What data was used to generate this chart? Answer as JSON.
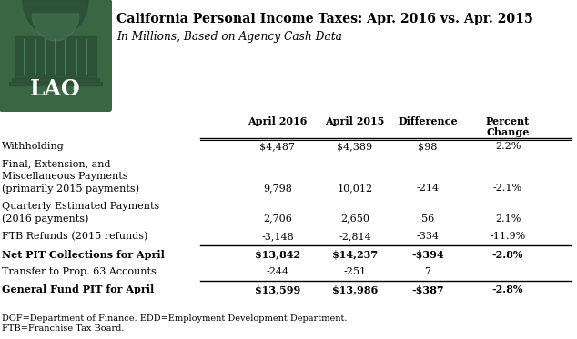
{
  "title": "California Personal Income Taxes: Apr. 2016 vs. Apr. 2015",
  "subtitle": "In Millions, Based on Agency Cash Data",
  "col_headers": [
    "April 2016",
    "April 2015",
    "Difference",
    "Percent\nChange"
  ],
  "rows": [
    {
      "label_lines": [
        "Withholding"
      ],
      "values": [
        "$4,487",
        "$4,389",
        "$98",
        "2.2%"
      ],
      "bold": false,
      "border_above": true,
      "border_below": false
    },
    {
      "label_lines": [
        "Final, Extension, and",
        "Miscellaneous Payments",
        "(primarily 2015 payments)"
      ],
      "values": [
        "9,798",
        "10,012",
        "-214",
        "-2.1%"
      ],
      "bold": false,
      "border_above": false,
      "border_below": false
    },
    {
      "label_lines": [
        "Quarterly Estimated Payments",
        "(2016 payments)"
      ],
      "values": [
        "2,706",
        "2,650",
        "56",
        "2.1%"
      ],
      "bold": false,
      "border_above": false,
      "border_below": false
    },
    {
      "label_lines": [
        "FTB Refunds (2015 refunds)"
      ],
      "values": [
        "-3,148",
        "-2,814",
        "-334",
        "-11.9%"
      ],
      "bold": false,
      "border_above": false,
      "border_below": true
    },
    {
      "label_lines": [
        "Net PIT Collections for April"
      ],
      "values": [
        "$13,842",
        "$14,237",
        "-$394",
        "-2.8%"
      ],
      "bold": true,
      "border_above": false,
      "border_below": false
    },
    {
      "label_lines": [
        "Transfer to Prop. 63 Accounts"
      ],
      "values": [
        "-244",
        "-251",
        "7",
        ""
      ],
      "bold": false,
      "border_above": false,
      "border_below": true
    },
    {
      "label_lines": [
        "General Fund PIT for April"
      ],
      "values": [
        "$13,599",
        "$13,986",
        "-$387",
        "-2.8%"
      ],
      "bold": true,
      "border_above": false,
      "border_below": false
    }
  ],
  "footnote1": "DOF=Department of Finance. EDD=Employment Development Department.",
  "footnote2": "FTB=Franchise Tax Board.",
  "bg_color": "#ffffff",
  "logo_bg_color": "#3a6644",
  "logo_dark_color": "#2a4f35",
  "dome_color": "#4a7a5a"
}
